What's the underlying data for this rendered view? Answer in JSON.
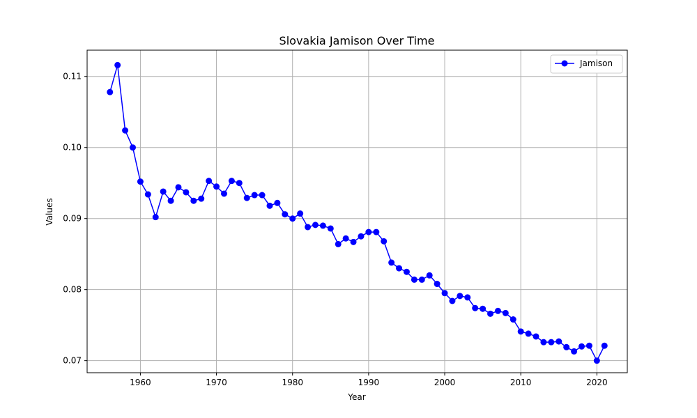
{
  "chart_data": {
    "type": "line",
    "title": "Slovakia Jamison Over Time",
    "xlabel": "Year",
    "ylabel": "Values",
    "xlim": [
      1953,
      2024
    ],
    "ylim": [
      0.0683,
      0.1137
    ],
    "xticks": [
      1960,
      1970,
      1980,
      1990,
      2000,
      2010,
      2020
    ],
    "yticks": [
      0.07,
      0.08,
      0.09,
      0.1,
      0.11
    ],
    "ytick_labels": [
      "0.07",
      "0.08",
      "0.09",
      "0.10",
      "0.11"
    ],
    "grid": true,
    "legend_position": "top-right",
    "colors": {
      "series": "#0000ff",
      "grid": "#b0b0b0"
    },
    "series": [
      {
        "name": "Jamison",
        "x": [
          1956,
          1957,
          1958,
          1959,
          1960,
          1961,
          1962,
          1963,
          1964,
          1965,
          1966,
          1967,
          1968,
          1969,
          1970,
          1971,
          1972,
          1973,
          1974,
          1975,
          1976,
          1977,
          1978,
          1979,
          1980,
          1981,
          1982,
          1983,
          1984,
          1985,
          1986,
          1987,
          1988,
          1989,
          1990,
          1991,
          1992,
          1993,
          1994,
          1995,
          1996,
          1997,
          1998,
          1999,
          2000,
          2001,
          2002,
          2003,
          2004,
          2005,
          2006,
          2007,
          2008,
          2009,
          2010,
          2011,
          2012,
          2013,
          2014,
          2015,
          2016,
          2017,
          2018,
          2019,
          2020,
          2021
        ],
        "values": [
          0.1078,
          0.1116,
          0.1024,
          0.1,
          0.0952,
          0.0934,
          0.0902,
          0.0938,
          0.0925,
          0.0944,
          0.0937,
          0.0925,
          0.0928,
          0.0953,
          0.0945,
          0.0935,
          0.0953,
          0.095,
          0.0929,
          0.0933,
          0.0933,
          0.0918,
          0.0922,
          0.0906,
          0.09,
          0.0907,
          0.0888,
          0.0891,
          0.089,
          0.0886,
          0.0864,
          0.0872,
          0.0867,
          0.0875,
          0.0881,
          0.0881,
          0.0868,
          0.0838,
          0.083,
          0.0825,
          0.0814,
          0.0814,
          0.082,
          0.0808,
          0.0795,
          0.0784,
          0.0791,
          0.0789,
          0.0774,
          0.0773,
          0.0766,
          0.077,
          0.0767,
          0.0758,
          0.0741,
          0.0738,
          0.0734,
          0.0726,
          0.0726,
          0.0727,
          0.0719,
          0.0713,
          0.072,
          0.0721,
          0.07,
          0.0721
        ]
      }
    ]
  }
}
